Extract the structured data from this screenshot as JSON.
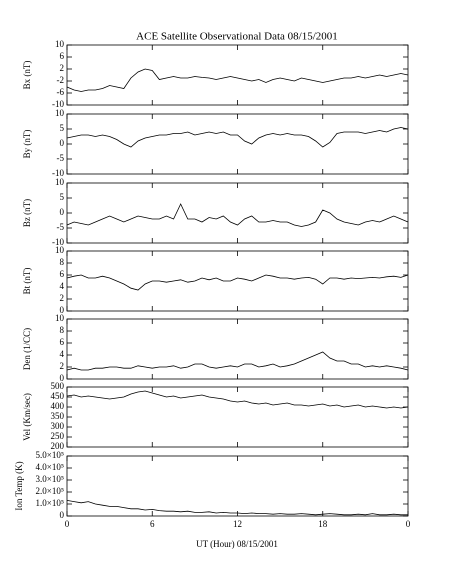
{
  "chart_data": [
    {
      "type": "line",
      "title": "ACE Satellite Observational Data   08/15/2001",
      "ylabel": "Bx (nT)",
      "x": [
        0,
        0.5,
        1,
        1.5,
        2,
        2.5,
        3,
        3.5,
        4,
        4.5,
        5,
        5.5,
        6,
        6.5,
        7,
        7.5,
        8,
        8.5,
        9,
        9.5,
        10,
        10.5,
        11,
        11.5,
        12,
        12.5,
        13,
        13.5,
        14,
        14.5,
        15,
        15.5,
        16,
        16.5,
        17,
        17.5,
        18,
        18.5,
        19,
        19.5,
        20,
        20.5,
        21,
        21.5,
        22,
        22.5,
        23,
        23.5,
        24
      ],
      "values": [
        -4,
        -5,
        -5.5,
        -5,
        -5,
        -4.5,
        -3.5,
        -4,
        -4.5,
        -1,
        1,
        2,
        1.5,
        -1.5,
        -1,
        -0.5,
        -1,
        -1,
        -0.5,
        -0.8,
        -1,
        -1.5,
        -1,
        -0.5,
        -1,
        -1.5,
        -2,
        -1.5,
        -2.5,
        -1.5,
        -1,
        -1.5,
        -2,
        -1,
        -1.5,
        -2,
        -2.5,
        -2,
        -1.5,
        -1,
        -1,
        -0.5,
        -1,
        -0.5,
        0,
        -0.5,
        0,
        0.5,
        0
      ],
      "color": "#000000",
      "ylim": [
        -10,
        10
      ],
      "yticks": [
        -10,
        -6,
        -2,
        2,
        6,
        10
      ]
    },
    {
      "type": "line",
      "ylabel": "By (nT)",
      "x": [
        0,
        0.5,
        1,
        1.5,
        2,
        2.5,
        3,
        3.5,
        4,
        4.5,
        5,
        5.5,
        6,
        6.5,
        7,
        7.5,
        8,
        8.5,
        9,
        9.5,
        10,
        10.5,
        11,
        11.5,
        12,
        12.5,
        13,
        13.5,
        14,
        14.5,
        15,
        15.5,
        16,
        16.5,
        17,
        17.5,
        18,
        18.5,
        19,
        19.5,
        20,
        20.5,
        21,
        21.5,
        22,
        22.5,
        23,
        23.5,
        24
      ],
      "values": [
        2,
        2.5,
        3,
        3,
        2.5,
        3,
        2.5,
        1.5,
        0,
        -1,
        1,
        2,
        2.5,
        3,
        3,
        3.5,
        3.5,
        4,
        3,
        3.5,
        4,
        3.5,
        4,
        3,
        3,
        1,
        0,
        2,
        3,
        3.5,
        3,
        3.5,
        3,
        3,
        2.5,
        1,
        -1,
        0.5,
        3.5,
        4,
        4,
        4,
        3.5,
        4,
        4.5,
        4,
        5,
        5.5,
        5
      ],
      "color": "#000000",
      "ylim": [
        -10,
        10
      ],
      "yticks": [
        -10,
        -5,
        0,
        5,
        10
      ]
    },
    {
      "type": "line",
      "ylabel": "Bz (nT)",
      "x": [
        0,
        0.5,
        1,
        1.5,
        2,
        2.5,
        3,
        3.5,
        4,
        4.5,
        5,
        5.5,
        6,
        6.5,
        7,
        7.5,
        8,
        8.5,
        9,
        9.5,
        10,
        10.5,
        11,
        11.5,
        12,
        12.5,
        13,
        13.5,
        14,
        14.5,
        15,
        15.5,
        16,
        16.5,
        17,
        17.5,
        18,
        18.5,
        19,
        19.5,
        20,
        20.5,
        21,
        21.5,
        22,
        22.5,
        23,
        23.5,
        24
      ],
      "values": [
        -4,
        -3,
        -3.5,
        -4,
        -3,
        -2,
        -1,
        -2,
        -3,
        -2,
        -1,
        -1.5,
        -2,
        -2,
        -1,
        -2,
        3,
        -2,
        -2,
        -3,
        -1.5,
        -2,
        -1,
        -3,
        -4,
        -2,
        -1,
        -3,
        -3,
        -2.5,
        -3,
        -3,
        -4,
        -4.5,
        -4,
        -3,
        1,
        0,
        -2,
        -3,
        -3.5,
        -4,
        -3,
        -2.5,
        -3,
        -2,
        -1,
        -2,
        -3
      ],
      "color": "#000000",
      "ylim": [
        -10,
        10
      ],
      "yticks": [
        -10,
        -5,
        0,
        5,
        10
      ]
    },
    {
      "type": "line",
      "ylabel": "Bt (nT)",
      "x": [
        0,
        0.5,
        1,
        1.5,
        2,
        2.5,
        3,
        3.5,
        4,
        4.5,
        5,
        5.5,
        6,
        6.5,
        7,
        7.5,
        8,
        8.5,
        9,
        9.5,
        10,
        10.5,
        11,
        11.5,
        12,
        12.5,
        13,
        13.5,
        14,
        14.5,
        15,
        15.5,
        16,
        16.5,
        17,
        17.5,
        18,
        18.5,
        19,
        19.5,
        20,
        20.5,
        21,
        21.5,
        22,
        22.5,
        23,
        23.5,
        24
      ],
      "values": [
        5.5,
        5.8,
        6,
        5.5,
        5.5,
        5.8,
        5.5,
        5,
        4.5,
        3.8,
        3.5,
        4.5,
        5,
        5,
        4.8,
        5,
        5.2,
        4.8,
        5,
        5.5,
        5.2,
        5.5,
        5,
        5,
        5.5,
        5.3,
        5,
        5.5,
        6,
        5.8,
        5.5,
        5.5,
        5.3,
        5.5,
        5.6,
        5.3,
        4.5,
        5.5,
        5.5,
        5.3,
        5.5,
        5.4,
        5.5,
        5.6,
        5.5,
        5.7,
        5.8,
        5.6,
        6
      ],
      "color": "#000000",
      "ylim": [
        0,
        10
      ],
      "yticks": [
        0,
        2,
        4,
        6,
        8,
        10
      ]
    },
    {
      "type": "line",
      "ylabel": "Den (1/CC)",
      "x": [
        0,
        0.5,
        1,
        1.5,
        2,
        2.5,
        3,
        3.5,
        4,
        4.5,
        5,
        5.5,
        6,
        6.5,
        7,
        7.5,
        8,
        8.5,
        9,
        9.5,
        10,
        10.5,
        11,
        11.5,
        12,
        12.5,
        13,
        13.5,
        14,
        14.5,
        15,
        15.5,
        16,
        16.5,
        17,
        17.5,
        18,
        18.5,
        19,
        19.5,
        20,
        20.5,
        21,
        21.5,
        22,
        22.5,
        23,
        23.5,
        24
      ],
      "values": [
        1.5,
        1.8,
        1.5,
        1.5,
        1.8,
        1.8,
        2,
        2,
        1.8,
        1.8,
        2.2,
        2,
        1.8,
        2,
        2,
        2.2,
        1.8,
        2,
        2.5,
        2.5,
        2,
        1.8,
        2,
        2.2,
        2,
        2.5,
        2.5,
        2,
        2.2,
        2.5,
        2,
        2.2,
        2.5,
        3,
        3.5,
        4,
        4.5,
        3.5,
        3,
        3,
        2.5,
        2.5,
        2,
        2.2,
        2,
        2.2,
        2,
        1.8,
        1.5
      ],
      "color": "#000000",
      "ylim": [
        0,
        10
      ],
      "yticks": [
        0,
        2,
        4,
        6,
        8,
        10
      ]
    },
    {
      "type": "line",
      "ylabel": "Vel (Km/sec)",
      "x": [
        0,
        0.5,
        1,
        1.5,
        2,
        2.5,
        3,
        3.5,
        4,
        4.5,
        5,
        5.5,
        6,
        6.5,
        7,
        7.5,
        8,
        8.5,
        9,
        9.5,
        10,
        10.5,
        11,
        11.5,
        12,
        12.5,
        13,
        13.5,
        14,
        14.5,
        15,
        15.5,
        16,
        16.5,
        17,
        17.5,
        18,
        18.5,
        19,
        19.5,
        20,
        20.5,
        21,
        21.5,
        22,
        22.5,
        23,
        23.5,
        24
      ],
      "values": [
        455,
        460,
        450,
        455,
        450,
        445,
        440,
        445,
        450,
        465,
        475,
        480,
        470,
        460,
        450,
        455,
        445,
        450,
        455,
        460,
        450,
        445,
        440,
        430,
        425,
        430,
        420,
        415,
        420,
        410,
        415,
        420,
        410,
        410,
        405,
        410,
        415,
        405,
        410,
        400,
        405,
        410,
        400,
        405,
        400,
        395,
        400,
        395,
        400
      ],
      "color": "#000000",
      "ylim": [
        200,
        500
      ],
      "yticks": [
        200,
        250,
        300,
        350,
        400,
        450,
        500
      ]
    },
    {
      "type": "line",
      "ylabel": "Ion Temp (K)",
      "xlabel": "UT (Hour)  08/15/2001",
      "x": [
        0,
        0.5,
        1,
        1.5,
        2,
        2.5,
        3,
        3.5,
        4,
        4.5,
        5,
        5.5,
        6,
        6.5,
        7,
        7.5,
        8,
        8.5,
        9,
        9.5,
        10,
        10.5,
        11,
        11.5,
        12,
        12.5,
        13,
        13.5,
        14,
        14.5,
        15,
        15.5,
        16,
        16.5,
        17,
        17.5,
        18,
        18.5,
        19,
        19.5,
        20,
        20.5,
        21,
        21.5,
        22,
        22.5,
        23,
        23.5,
        24
      ],
      "values": [
        130000,
        120000,
        110000,
        120000,
        100000,
        90000,
        80000,
        80000,
        70000,
        60000,
        60000,
        50000,
        55000,
        45000,
        40000,
        40000,
        35000,
        40000,
        30000,
        30000,
        35000,
        25000,
        30000,
        25000,
        25000,
        20000,
        25000,
        20000,
        20000,
        15000,
        20000,
        15000,
        15000,
        20000,
        15000,
        10000,
        15000,
        20000,
        15000,
        10000,
        10000,
        15000,
        10000,
        20000,
        10000,
        10000,
        15000,
        10000,
        10000
      ],
      "color": "#000000",
      "ylim": [
        0,
        500000
      ],
      "yticks": [
        0,
        {
          "value": 100000,
          "label": "1.0×10⁵"
        },
        {
          "value": 200000,
          "label": "2.0×10⁵"
        },
        {
          "value": 300000,
          "label": "3.0×10⁵"
        },
        {
          "value": 400000,
          "label": "4.0×10⁵"
        },
        {
          "value": 500000,
          "label": "5.0×10⁵"
        }
      ],
      "xlim": [
        0,
        24
      ],
      "xticks": [
        0,
        6,
        12,
        18,
        {
          "value": 24,
          "label": "0"
        }
      ]
    }
  ]
}
